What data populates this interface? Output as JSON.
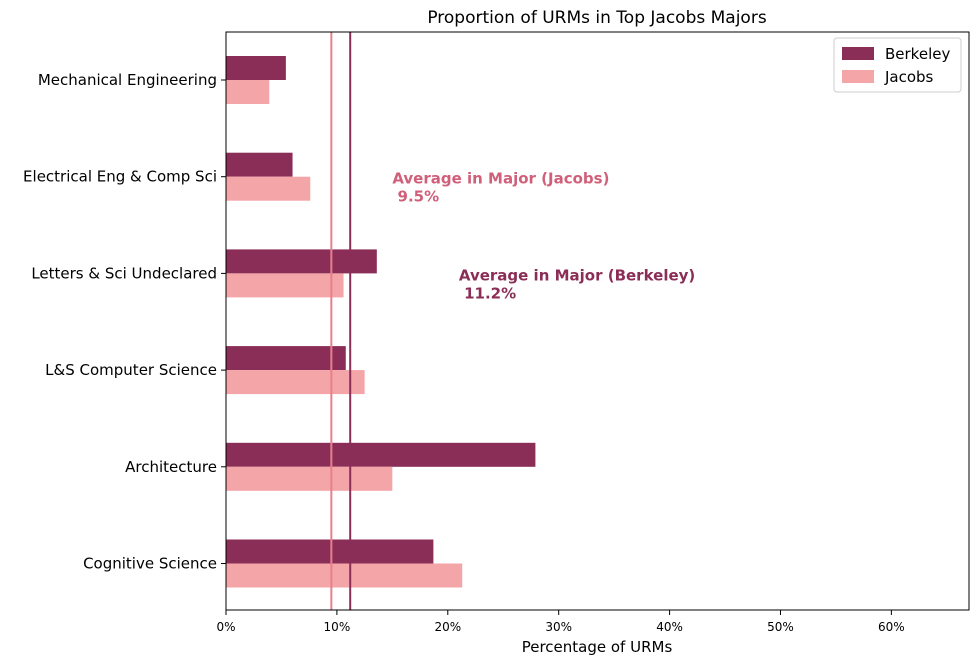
{
  "chart_data": {
    "type": "bar",
    "orientation": "horizontal",
    "title": "Proportion of URMs in Top Jacobs Majors",
    "xlabel": "Percentage of URMs",
    "ylabel": "",
    "xlim": [
      0,
      67
    ],
    "xticks": [
      0,
      10,
      20,
      30,
      40,
      50,
      60
    ],
    "xtick_labels": [
      "0%",
      "10%",
      "20%",
      "30%",
      "40%",
      "50%",
      "60%"
    ],
    "categories": [
      "Mechanical Engineering",
      "Electrical Eng & Comp Sci",
      "Letters & Sci Undeclared",
      "L&S Computer Science",
      "Architecture",
      "Cognitive Science"
    ],
    "series": [
      {
        "name": "Berkeley",
        "color": "#8b2e57",
        "values": [
          5.4,
          6.0,
          13.6,
          10.8,
          27.9,
          18.7
        ]
      },
      {
        "name": "Jacobs",
        "color": "#f4a5a8",
        "values": [
          3.9,
          7.6,
          10.6,
          12.5,
          15.0,
          21.3
        ]
      }
    ],
    "reference_lines": [
      {
        "value": 9.5,
        "color": "#e8808c",
        "label_line1": "Average in Major (Jacobs)",
        "label_line2": " 9.5%",
        "label_color": "#d0607a",
        "label_x": 15.0,
        "label_category": 1
      },
      {
        "value": 11.2,
        "color": "#8b2e57",
        "label_line1": "Average in Major (Berkeley)",
        "label_line2": " 11.2%",
        "label_color": "#8b2e57",
        "label_x": 21.0,
        "label_category": 2
      }
    ],
    "legend": {
      "position": "top-right",
      "entries": [
        "Berkeley",
        "Jacobs"
      ]
    },
    "grid": false
  }
}
